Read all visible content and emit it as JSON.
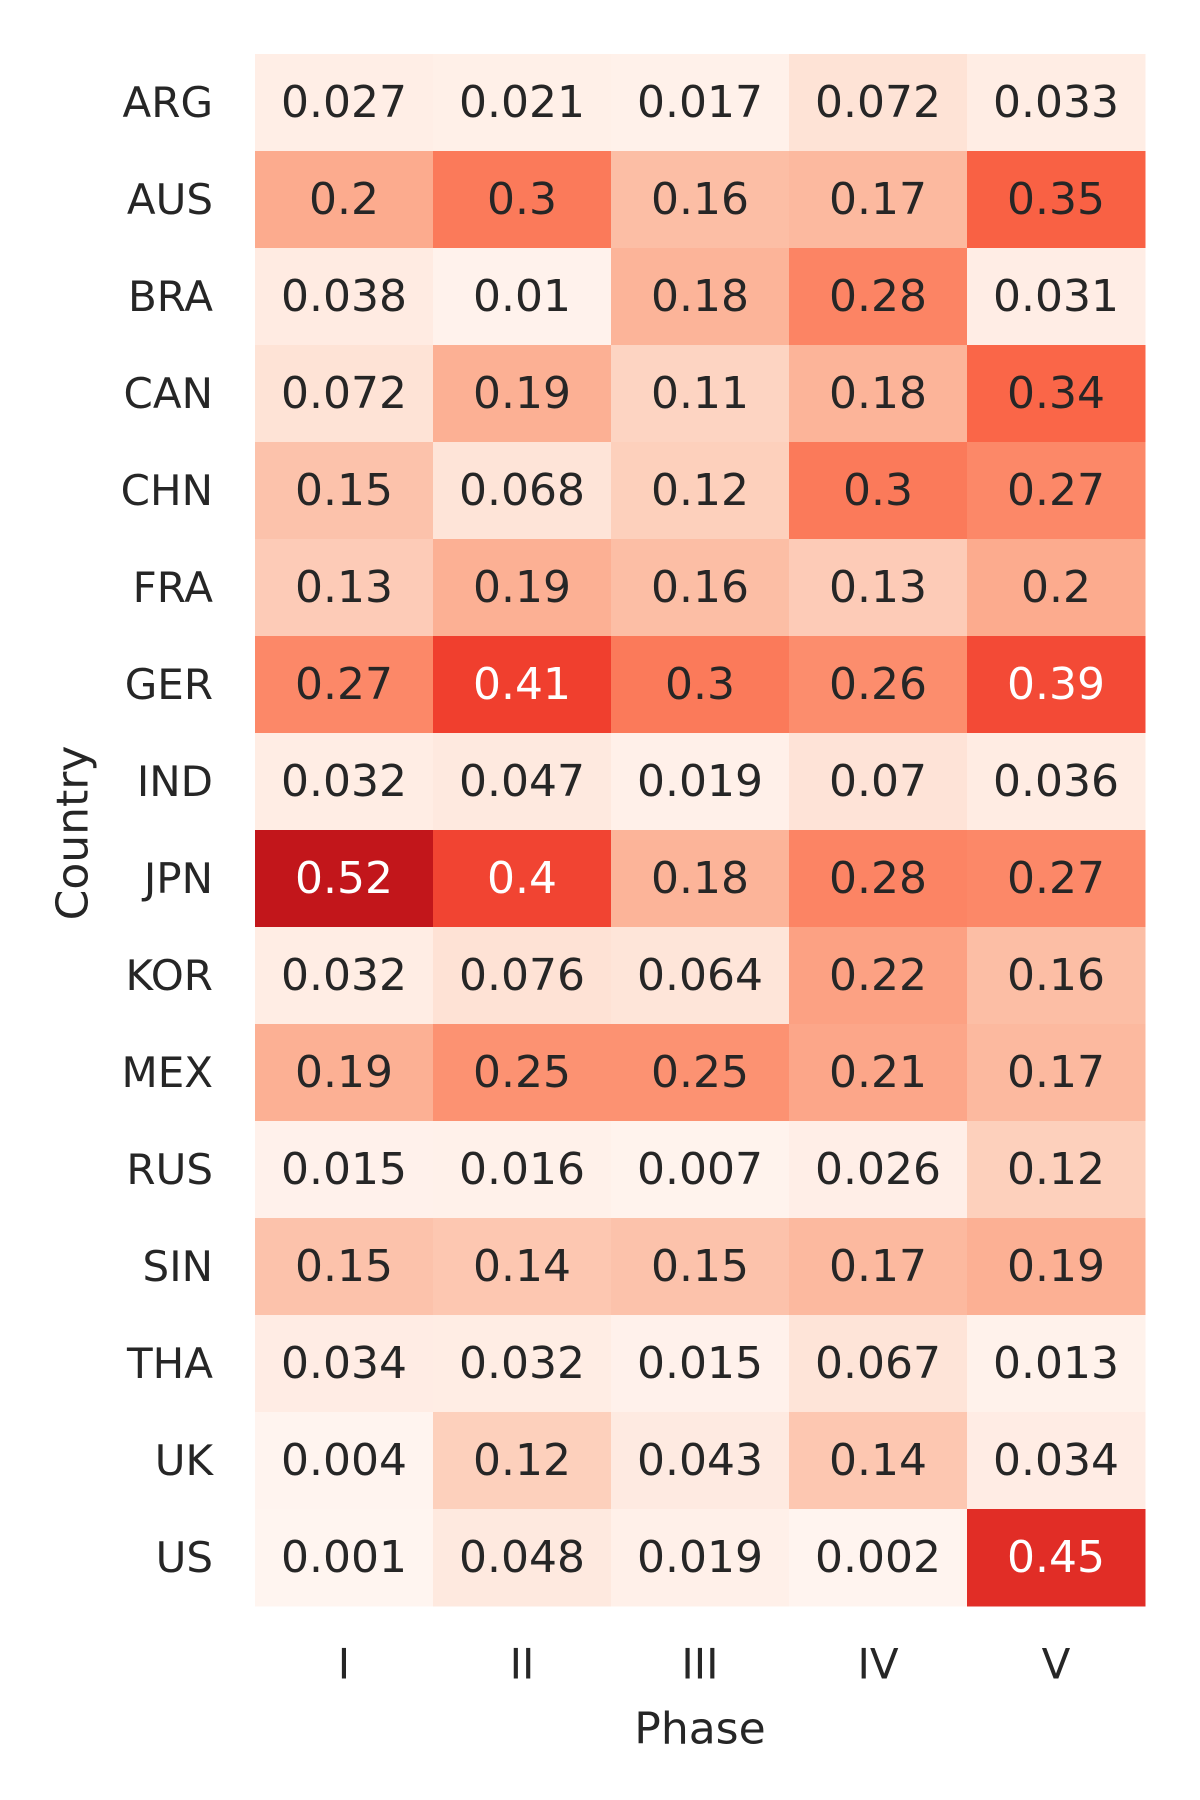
{
  "chart_data": {
    "type": "heatmap",
    "title": "",
    "xlabel": "Phase",
    "ylabel": "Country",
    "x_categories": [
      "I",
      "II",
      "III",
      "IV",
      "V"
    ],
    "y_categories": [
      "ARG",
      "AUS",
      "BRA",
      "CAN",
      "CHN",
      "FRA",
      "GER",
      "IND",
      "JPN",
      "KOR",
      "MEX",
      "RUS",
      "SIN",
      "THA",
      "UK",
      "US"
    ],
    "values": [
      [
        0.027,
        0.021,
        0.017,
        0.072,
        0.033
      ],
      [
        0.2,
        0.3,
        0.16,
        0.17,
        0.35
      ],
      [
        0.038,
        0.01,
        0.18,
        0.28,
        0.031
      ],
      [
        0.072,
        0.19,
        0.11,
        0.18,
        0.34
      ],
      [
        0.15,
        0.068,
        0.12,
        0.3,
        0.27
      ],
      [
        0.13,
        0.19,
        0.16,
        0.13,
        0.2
      ],
      [
        0.27,
        0.41,
        0.3,
        0.26,
        0.39
      ],
      [
        0.032,
        0.047,
        0.019,
        0.07,
        0.036
      ],
      [
        0.52,
        0.4,
        0.18,
        0.28,
        0.27
      ],
      [
        0.032,
        0.076,
        0.064,
        0.22,
        0.16
      ],
      [
        0.19,
        0.25,
        0.25,
        0.21,
        0.17
      ],
      [
        0.015,
        0.016,
        0.007,
        0.026,
        0.12
      ],
      [
        0.15,
        0.14,
        0.15,
        0.17,
        0.19
      ],
      [
        0.034,
        0.032,
        0.015,
        0.067,
        0.013
      ],
      [
        0.004,
        0.12,
        0.043,
        0.14,
        0.034
      ],
      [
        0.001,
        0.048,
        0.019,
        0.002,
        0.45
      ]
    ],
    "labels": [
      [
        "0.027",
        "0.021",
        "0.017",
        "0.072",
        "0.033"
      ],
      [
        "0.2",
        "0.3",
        "0.16",
        "0.17",
        "0.35"
      ],
      [
        "0.038",
        "0.01",
        "0.18",
        "0.28",
        "0.031"
      ],
      [
        "0.072",
        "0.19",
        "0.11",
        "0.18",
        "0.34"
      ],
      [
        "0.15",
        "0.068",
        "0.12",
        "0.3",
        "0.27"
      ],
      [
        "0.13",
        "0.19",
        "0.16",
        "0.13",
        "0.2"
      ],
      [
        "0.27",
        "0.41",
        "0.3",
        "0.26",
        "0.39"
      ],
      [
        "0.032",
        "0.047",
        "0.019",
        "0.07",
        "0.036"
      ],
      [
        "0.52",
        "0.4",
        "0.18",
        "0.28",
        "0.27"
      ],
      [
        "0.032",
        "0.076",
        "0.064",
        "0.22",
        "0.16"
      ],
      [
        "0.19",
        "0.25",
        "0.25",
        "0.21",
        "0.17"
      ],
      [
        "0.015",
        "0.016",
        "0.007",
        "0.026",
        "0.12"
      ],
      [
        "0.15",
        "0.14",
        "0.15",
        "0.17",
        "0.19"
      ],
      [
        "0.034",
        "0.032",
        "0.015",
        "0.067",
        "0.013"
      ],
      [
        "0.004",
        "0.12",
        "0.043",
        "0.14",
        "0.034"
      ],
      [
        "0.001",
        "0.048",
        "0.019",
        "0.002",
        "0.45"
      ]
    ],
    "color_range": [
      0.0,
      0.52
    ],
    "colormap": "Reds",
    "legend": "none",
    "grid": false
  },
  "colors": {
    "background": "#ffffff",
    "text_dark": "#262626",
    "text_light": "#ffffff",
    "colormap_stops": [
      "#fff5f0",
      "#fee0d2",
      "#fcbba1",
      "#fc9272",
      "#fb6a4a",
      "#ef3b2c",
      "#cb181d",
      "#a50f15",
      "#67000d"
    ]
  }
}
